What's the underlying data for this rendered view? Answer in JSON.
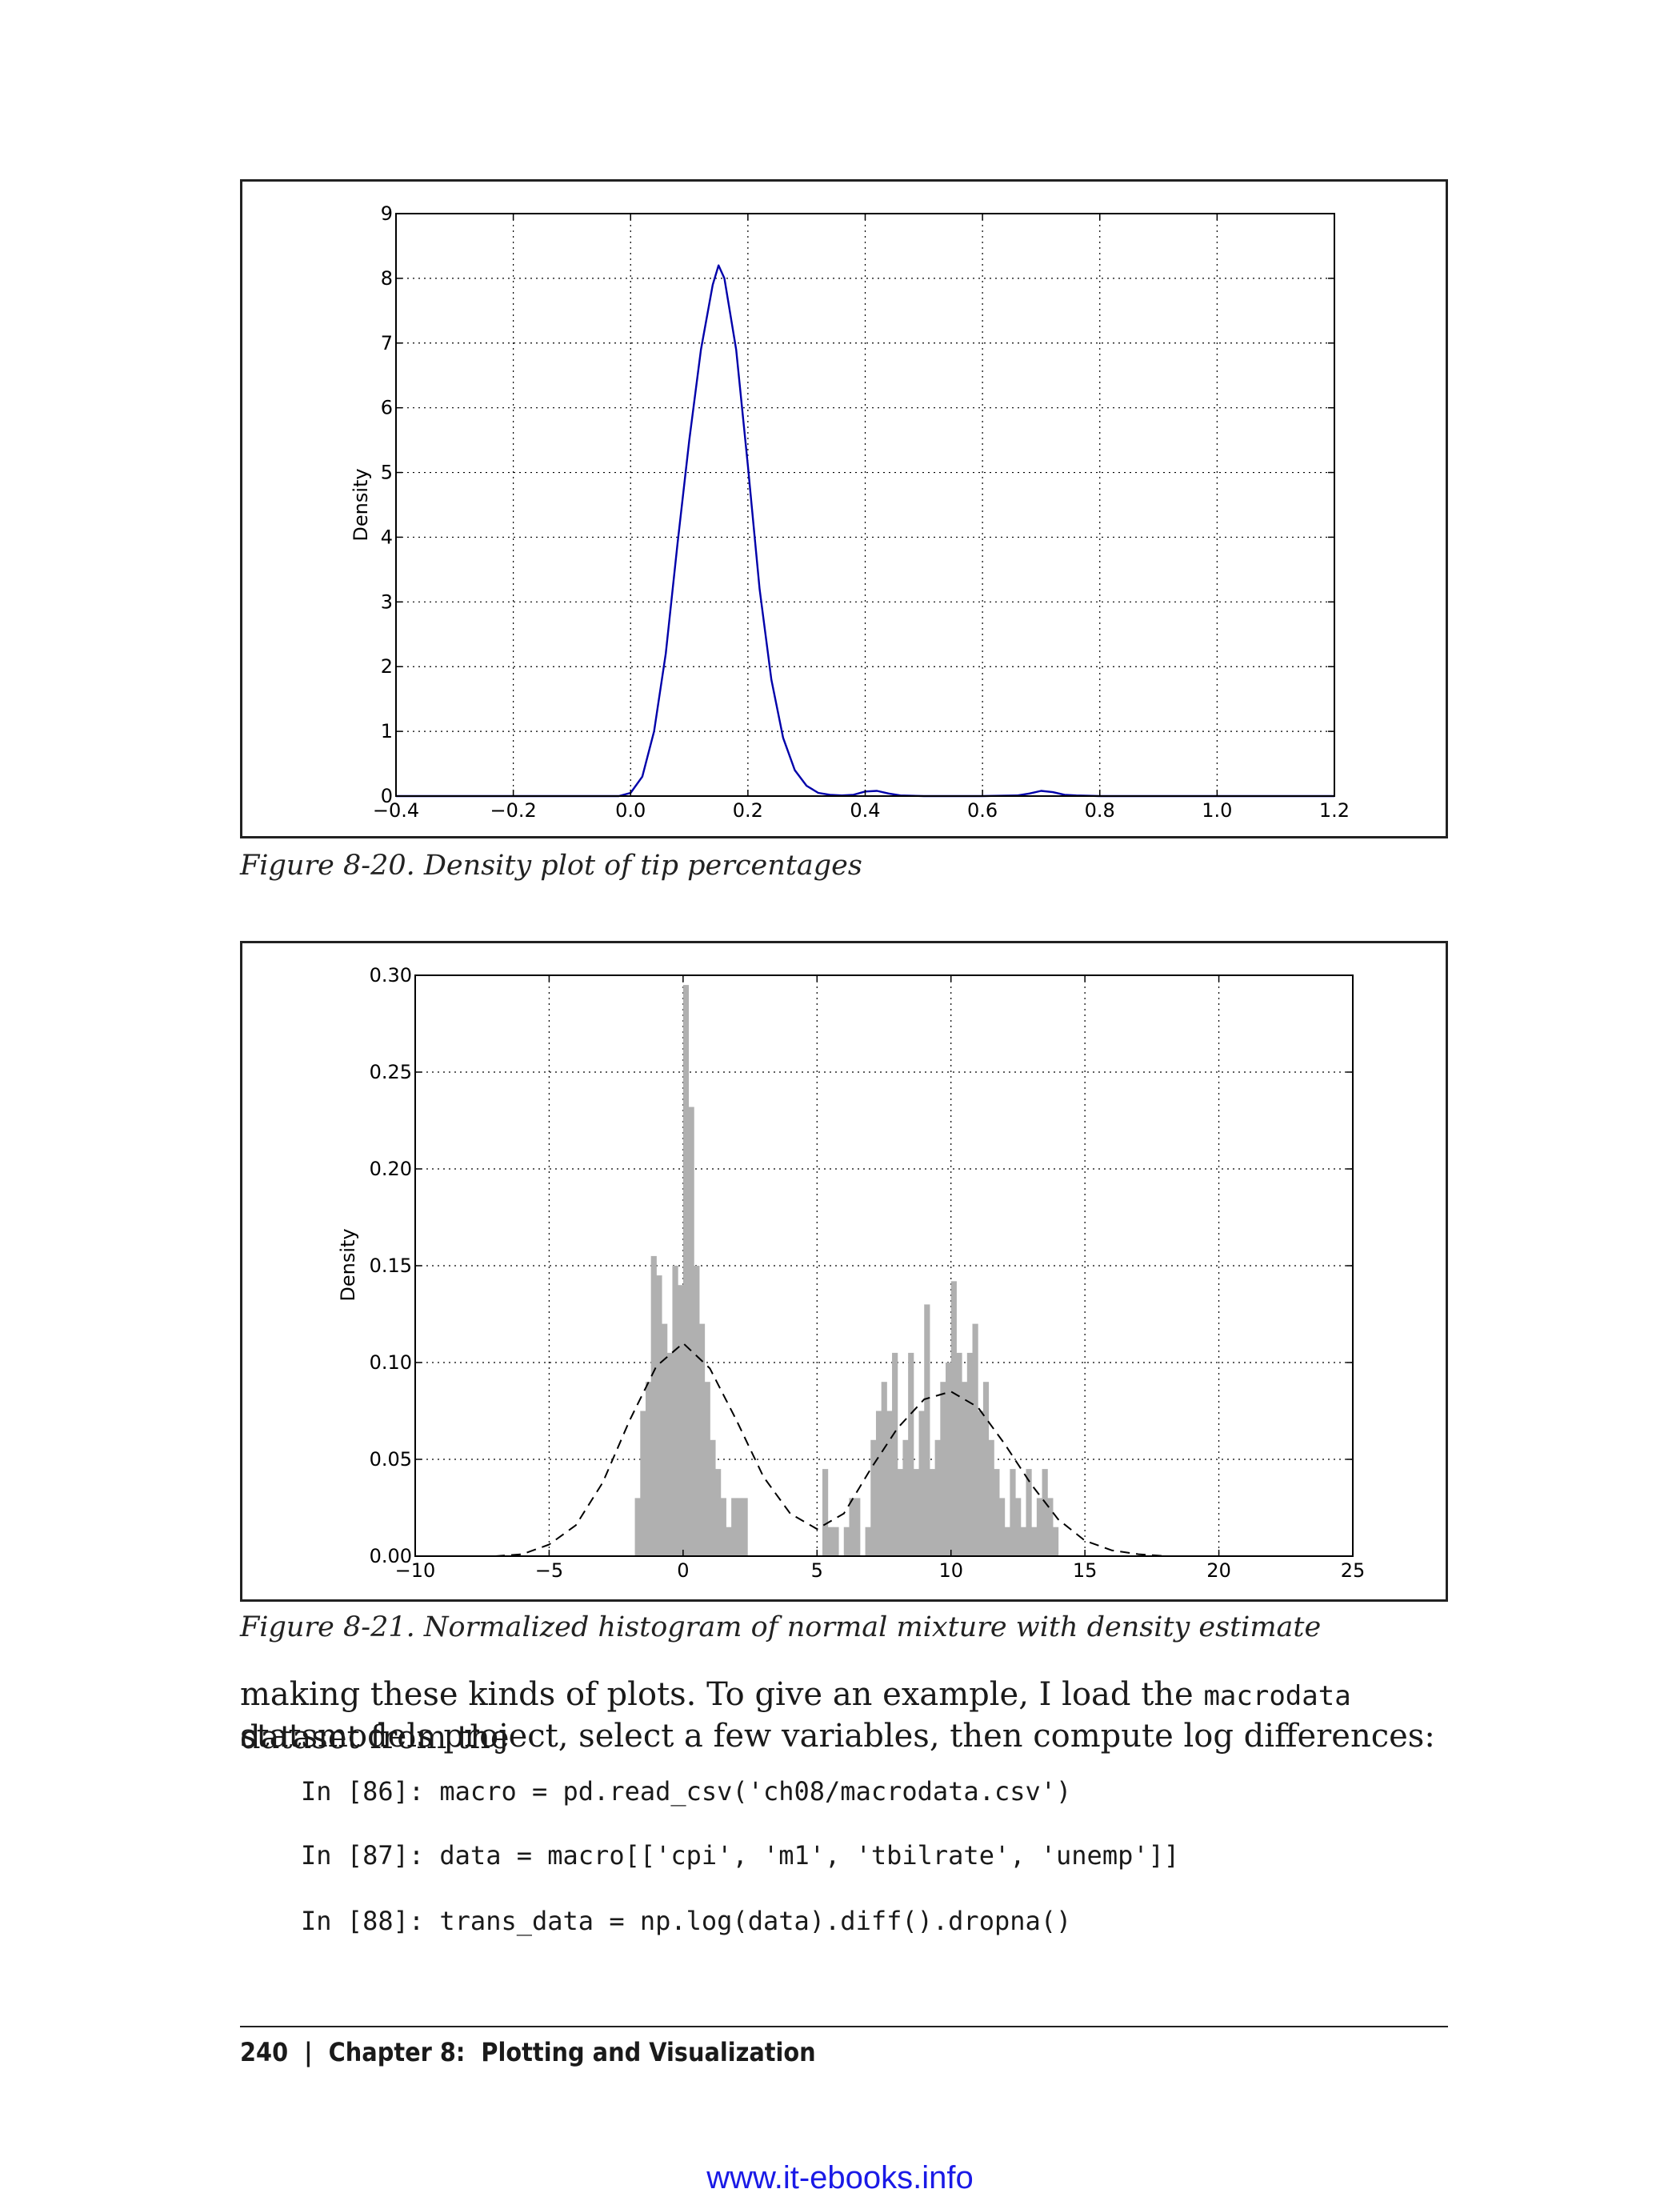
{
  "figure1": {
    "caption": "Figure 8-20. Density plot of tip percentages",
    "chart_data": {
      "type": "line",
      "title": "",
      "xlabel": "",
      "ylabel": "Density",
      "xlim": [
        -0.4,
        1.2
      ],
      "ylim": [
        0,
        9
      ],
      "x_ticks": [
        "−0.4",
        "−0.2",
        "0.0",
        "0.2",
        "0.4",
        "0.6",
        "0.8",
        "1.0",
        "1.2"
      ],
      "y_ticks": [
        "0",
        "1",
        "2",
        "3",
        "4",
        "5",
        "6",
        "7",
        "8",
        "9"
      ],
      "grid": true,
      "series": [
        {
          "color": "#0000aa",
          "x": [
            -0.4,
            -0.02,
            0.0,
            0.02,
            0.04,
            0.06,
            0.08,
            0.1,
            0.12,
            0.14,
            0.15,
            0.16,
            0.18,
            0.2,
            0.22,
            0.24,
            0.26,
            0.28,
            0.3,
            0.32,
            0.34,
            0.36,
            0.38,
            0.4,
            0.42,
            0.44,
            0.46,
            0.5,
            0.6,
            0.66,
            0.68,
            0.7,
            0.72,
            0.74,
            0.76,
            0.8,
            1.0,
            1.2
          ],
          "y": [
            0,
            0,
            0.05,
            0.3,
            1.0,
            2.2,
            3.9,
            5.5,
            6.9,
            7.9,
            8.2,
            8.0,
            6.9,
            5.1,
            3.2,
            1.8,
            0.9,
            0.4,
            0.16,
            0.05,
            0.02,
            0.01,
            0.02,
            0.07,
            0.08,
            0.04,
            0.01,
            0,
            0,
            0.01,
            0.04,
            0.08,
            0.06,
            0.02,
            0.01,
            0,
            0,
            0
          ]
        }
      ]
    }
  },
  "figure2": {
    "caption": "Figure 8-21. Normalized histogram of normal mixture with density estimate",
    "chart_data": {
      "type": "bar",
      "title": "",
      "xlabel": "",
      "ylabel": "Density",
      "xlim": [
        -10,
        25
      ],
      "ylim": [
        0,
        0.3
      ],
      "x_ticks": [
        "−10",
        "−5",
        "0",
        "5",
        "10",
        "15",
        "20",
        "25"
      ],
      "y_ticks": [
        "0.00",
        "0.05",
        "0.10",
        "0.15",
        "0.20",
        "0.25",
        "0.30"
      ],
      "grid": true,
      "histogram": {
        "color": "#b0b0b0",
        "bin_width": 0.2,
        "x_start": [
          -1.8,
          -1.6,
          -1.4,
          -1.2,
          -1.0,
          -0.8,
          -0.6,
          -0.4,
          -0.2,
          0.0,
          0.2,
          0.4,
          0.6,
          0.8,
          1.0,
          1.2,
          1.4,
          1.6,
          1.8,
          2.0,
          2.2,
          5.2,
          5.4,
          5.6,
          6.0,
          6.2,
          6.4,
          6.8,
          7.0,
          7.2,
          7.4,
          7.6,
          7.8,
          8.0,
          8.2,
          8.4,
          8.6,
          8.8,
          9.0,
          9.2,
          9.4,
          9.6,
          9.8,
          10.0,
          10.2,
          10.4,
          10.6,
          10.8,
          11.0,
          11.2,
          11.4,
          11.6,
          11.8,
          12.0,
          12.2,
          12.4,
          12.6,
          12.8,
          13.0,
          13.2,
          13.4,
          13.6,
          13.8
        ],
        "values": [
          0.03,
          0.075,
          0.09,
          0.155,
          0.145,
          0.12,
          0.105,
          0.15,
          0.14,
          0.295,
          0.232,
          0.15,
          0.12,
          0.09,
          0.06,
          0.045,
          0.03,
          0.015,
          0.03,
          0.03,
          0.03,
          0.045,
          0.015,
          0.015,
          0.015,
          0.03,
          0.03,
          0.015,
          0.06,
          0.075,
          0.09,
          0.075,
          0.105,
          0.045,
          0.06,
          0.105,
          0.045,
          0.075,
          0.13,
          0.045,
          0.06,
          0.09,
          0.1,
          0.142,
          0.105,
          0.09,
          0.105,
          0.12,
          0.075,
          0.09,
          0.06,
          0.045,
          0.03,
          0.015,
          0.045,
          0.03,
          0.015,
          0.045,
          0.015,
          0.03,
          0.045,
          0.03,
          0.015
        ]
      },
      "density_curve": {
        "style": "dashed",
        "color": "#000000",
        "x": [
          -10,
          -7,
          -6,
          -5,
          -4,
          -3,
          -2,
          -1,
          0,
          1,
          2,
          3,
          4,
          5,
          6,
          7,
          8,
          9,
          10,
          11,
          12,
          13,
          14,
          15,
          16,
          17,
          18,
          25
        ],
        "y": [
          0,
          0,
          0.001,
          0.006,
          0.016,
          0.038,
          0.07,
          0.098,
          0.11,
          0.097,
          0.07,
          0.041,
          0.022,
          0.014,
          0.022,
          0.045,
          0.066,
          0.081,
          0.085,
          0.077,
          0.058,
          0.037,
          0.019,
          0.008,
          0.003,
          0.001,
          0,
          0
        ]
      }
    }
  },
  "text_lines": [
    {
      "pre": "making these kinds of plots. To give an example, I load the ",
      "code": "macrodata",
      "post": " dataset from the"
    },
    {
      "pre": "statsmodels project, select a few variables, then compute log differences:",
      "code": "",
      "post": ""
    }
  ],
  "code_block": [
    "In [86]: macro = pd.read_csv('ch08/macrodata.csv')",
    "In [87]: data = macro[['cpi', 'm1', 'tbilrate', 'unemp']]",
    "In [88]: trans_data = np.log(data).diff().dropna()"
  ],
  "footer": {
    "text": "240  |  Chapter 8:  Plotting and Visualization"
  },
  "watermark": "www.it-ebooks.info"
}
